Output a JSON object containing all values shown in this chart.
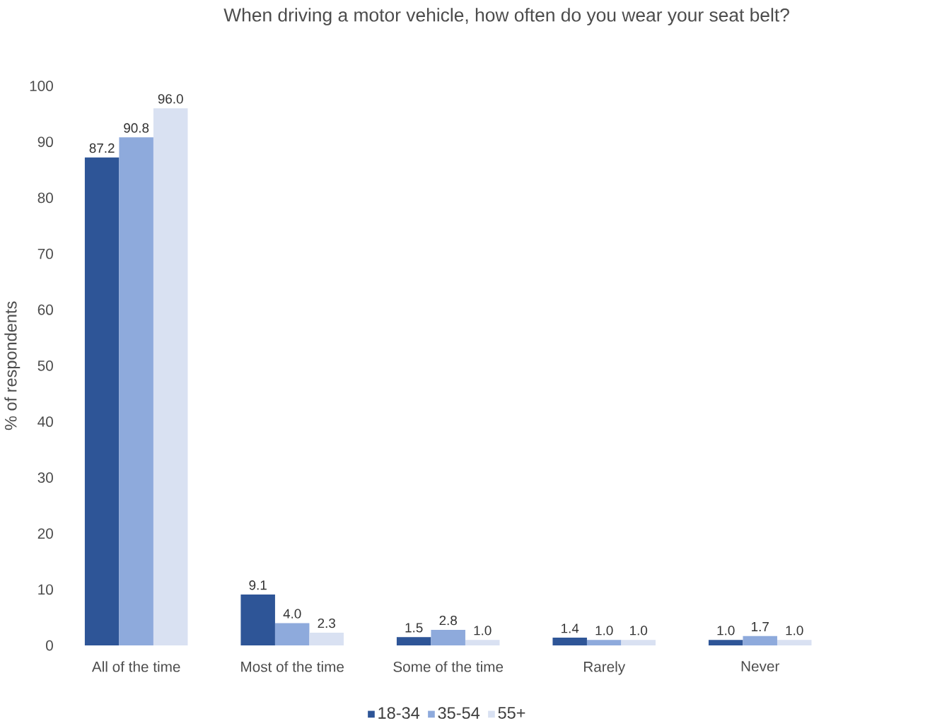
{
  "chart_data": {
    "type": "bar",
    "title": "When driving a motor vehicle, how often do you wear your seat belt?",
    "ylabel": "% of respondents",
    "categories": [
      "All of the time",
      "Most of the time",
      "Some of the time",
      "Rarely",
      "Never"
    ],
    "series": [
      {
        "name": "18-34",
        "color": "#2e5597",
        "values": [
          87.2,
          9.1,
          1.5,
          1.4,
          1.0
        ],
        "value_labels": [
          "87.2",
          "9.1",
          "1.5",
          "1.4",
          "1.0"
        ]
      },
      {
        "name": "35-54",
        "color": "#8eaadc",
        "values": [
          90.8,
          4.0,
          2.8,
          1.0,
          1.7
        ],
        "value_labels": [
          "90.8",
          "4.0",
          "2.8",
          "1.0",
          "1.7"
        ]
      },
      {
        "name": "55+",
        "color": "#d9e1f2",
        "values": [
          96.0,
          2.3,
          1.0,
          1.0,
          1.0
        ],
        "value_labels": [
          "96.0",
          "2.3",
          "1.0",
          "1.0",
          "1.0"
        ]
      }
    ],
    "ylim": [
      0,
      100
    ],
    "yticks": [
      0,
      10,
      20,
      30,
      40,
      50,
      60,
      70,
      80,
      90,
      100
    ],
    "grid": false,
    "legend": "bottom"
  }
}
